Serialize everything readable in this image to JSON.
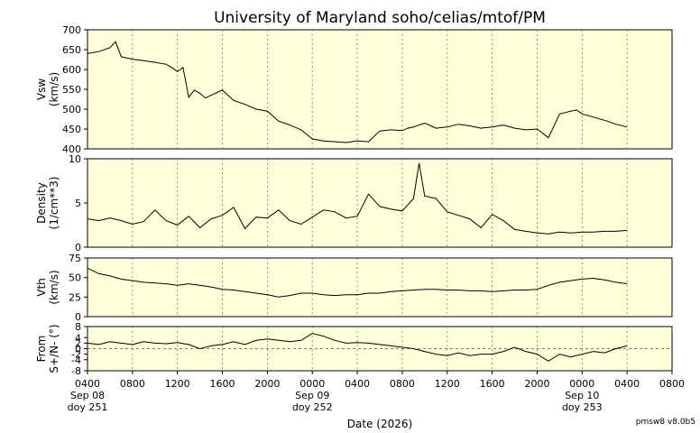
{
  "chart_data": {
    "type": "line",
    "title": "University of Maryland  soho/celias/mtof/PM",
    "xlabel": "Date (2026)",
    "footer": "pmsw8 v8.0b5",
    "x_range_hours": [
      0,
      52
    ],
    "x_ticks": [
      {
        "label": "0400",
        "sub1": "Sep 08",
        "sub2": "doy 251"
      },
      {
        "label": "0800",
        "sub1": "",
        "sub2": ""
      },
      {
        "label": "1200",
        "sub1": "",
        "sub2": ""
      },
      {
        "label": "1600",
        "sub1": "",
        "sub2": ""
      },
      {
        "label": "2000",
        "sub1": "",
        "sub2": ""
      },
      {
        "label": "0000",
        "sub1": "Sep 09",
        "sub2": "doy 252"
      },
      {
        "label": "0400",
        "sub1": "",
        "sub2": ""
      },
      {
        "label": "0800",
        "sub1": "",
        "sub2": ""
      },
      {
        "label": "1200",
        "sub1": "",
        "sub2": ""
      },
      {
        "label": "1600",
        "sub1": "",
        "sub2": ""
      },
      {
        "label": "2000",
        "sub1": "",
        "sub2": ""
      },
      {
        "label": "0000",
        "sub1": "Sep 10",
        "sub2": "doy 253"
      },
      {
        "label": "0400",
        "sub1": "",
        "sub2": ""
      },
      {
        "label": "0800",
        "sub1": "",
        "sub2": ""
      }
    ],
    "panels": [
      {
        "name": "Vsw",
        "ylabel": [
          "Vsw",
          "(km/s)"
        ],
        "ylim": [
          400,
          700
        ],
        "yticks": [
          400,
          450,
          500,
          550,
          600,
          650,
          700
        ],
        "zero_line": false,
        "x": [
          0,
          1,
          2,
          2.5,
          3,
          4,
          5,
          6,
          7,
          7.5,
          8,
          8.5,
          9,
          9.5,
          10,
          10.5,
          11,
          12,
          13,
          14,
          15,
          16,
          17,
          18,
          19,
          20,
          21,
          22,
          23,
          24,
          25,
          26,
          27,
          28,
          28.5,
          29,
          30,
          31,
          32,
          33,
          34,
          35,
          36,
          37,
          38,
          39,
          40,
          41,
          42,
          43,
          43.5,
          44,
          45,
          46,
          47,
          48
        ],
        "values": [
          640,
          645,
          655,
          670,
          632,
          626,
          622,
          618,
          613,
          605,
          595,
          605,
          530,
          548,
          540,
          528,
          535,
          548,
          522,
          512,
          500,
          495,
          470,
          460,
          448,
          425,
          420,
          418,
          416,
          420,
          418,
          445,
          448,
          446,
          452,
          455,
          465,
          452,
          455,
          462,
          458,
          452,
          455,
          460,
          452,
          448,
          450,
          428,
          488,
          495,
          498,
          488,
          480,
          472,
          462,
          455
        ]
      },
      {
        "name": "Density",
        "ylabel": [
          "Density",
          "(1/cm**3)"
        ],
        "ylim": [
          0,
          10
        ],
        "yticks": [
          0,
          5,
          10
        ],
        "zero_line": false,
        "x": [
          0,
          1,
          2,
          3,
          4,
          5,
          6,
          7,
          8,
          9,
          10,
          11,
          12,
          13,
          14,
          15,
          16,
          17,
          18,
          19,
          20,
          21,
          22,
          23,
          24,
          25,
          26,
          27,
          28,
          29,
          29.5,
          30,
          31,
          32,
          33,
          34,
          35,
          36,
          37,
          38,
          39,
          40,
          41,
          42,
          43,
          44,
          45,
          46,
          47,
          48
        ],
        "values": [
          3.2,
          3.0,
          3.3,
          3.0,
          2.6,
          2.9,
          4.2,
          3.0,
          2.5,
          3.5,
          2.2,
          3.2,
          3.6,
          4.5,
          2.1,
          3.4,
          3.3,
          4.2,
          3.0,
          2.6,
          3.4,
          4.2,
          4.0,
          3.3,
          3.5,
          6.0,
          4.6,
          4.3,
          4.1,
          5.5,
          9.5,
          5.8,
          5.5,
          4.0,
          3.6,
          3.2,
          2.2,
          3.7,
          3.0,
          2.0,
          1.8,
          1.6,
          1.5,
          1.7,
          1.6,
          1.7,
          1.7,
          1.8,
          1.8,
          1.9
        ]
      },
      {
        "name": "Vth",
        "ylabel": [
          "Vth",
          "(km/s)"
        ],
        "ylim": [
          0,
          75
        ],
        "yticks": [
          0,
          25,
          50,
          75
        ],
        "zero_line": false,
        "x": [
          0,
          1,
          2,
          3,
          4,
          5,
          6,
          7,
          8,
          9,
          10,
          11,
          12,
          13,
          14,
          15,
          16,
          17,
          18,
          19,
          20,
          21,
          22,
          23,
          24,
          25,
          26,
          27,
          28,
          29,
          30,
          31,
          32,
          33,
          34,
          35,
          36,
          37,
          38,
          39,
          40,
          41,
          42,
          43,
          44,
          45,
          46,
          47,
          48
        ],
        "values": [
          62,
          55,
          52,
          48,
          46,
          44,
          43,
          42,
          40,
          42,
          40,
          38,
          35,
          34,
          32,
          30,
          28,
          25,
          27,
          30,
          30,
          28,
          27,
          28,
          28,
          30,
          30,
          32,
          33,
          34,
          35,
          35,
          34,
          34,
          33,
          33,
          32,
          33,
          34,
          34,
          35,
          40,
          44,
          46,
          48,
          49,
          47,
          44,
          42
        ]
      },
      {
        "name": "From S+/N-",
        "ylabel": [
          "From",
          "S+/N- (°)"
        ],
        "ylim": [
          -8,
          8
        ],
        "yticks": [
          -8,
          -4,
          -2,
          0,
          2,
          4,
          8
        ],
        "zero_line": true,
        "x": [
          0,
          1,
          2,
          3,
          4,
          5,
          6,
          7,
          8,
          9,
          10,
          11,
          12,
          13,
          14,
          15,
          16,
          17,
          18,
          19,
          20,
          21,
          22,
          23,
          24,
          25,
          26,
          27,
          28,
          29,
          30,
          31,
          32,
          33,
          34,
          35,
          36,
          37,
          38,
          39,
          40,
          41,
          42,
          43,
          44,
          45,
          46,
          47,
          48
        ],
        "values": [
          2,
          1.5,
          2.5,
          2,
          1.5,
          2.5,
          2,
          1.8,
          2.2,
          1.5,
          0,
          1,
          1.5,
          2.5,
          1.5,
          3,
          3.5,
          3,
          2.5,
          3,
          5.5,
          4.5,
          3,
          2,
          2.2,
          2,
          1.5,
          1,
          0.5,
          0,
          -1,
          -2,
          -2.5,
          -1.5,
          -2.5,
          -2,
          -2,
          -1,
          0.5,
          -1,
          -2,
          -4.5,
          -2,
          -3,
          -2,
          -1,
          -1.5,
          0,
          1
        ]
      }
    ]
  }
}
